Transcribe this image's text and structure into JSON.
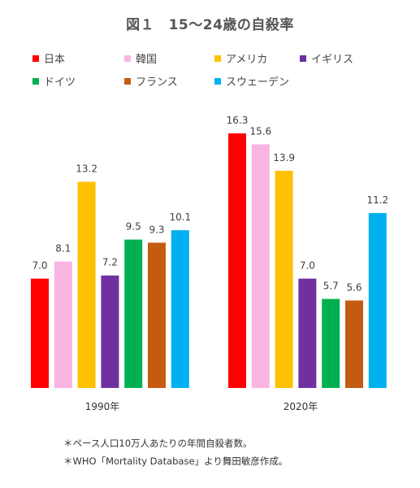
{
  "chart_data": {
    "type": "bar",
    "title": "図１　15～24歳の自殺率",
    "categories": [
      "1990年",
      "2020年"
    ],
    "series": [
      {
        "name": "日本",
        "color": "#ff0000",
        "values": [
          7.0,
          16.3
        ]
      },
      {
        "name": "韓国",
        "color": "#f9b5e2",
        "values": [
          8.1,
          15.6
        ]
      },
      {
        "name": "アメリカ",
        "color": "#ffc000",
        "values": [
          13.2,
          13.9
        ]
      },
      {
        "name": "イギリス",
        "color": "#7030a0",
        "values": [
          7.2,
          7.0
        ]
      },
      {
        "name": "ドイツ",
        "color": "#00b050",
        "values": [
          9.5,
          5.7
        ]
      },
      {
        "name": "フランス",
        "color": "#c55a11",
        "values": [
          9.3,
          5.6
        ]
      },
      {
        "name": "スウェーデン",
        "color": "#00b0f0",
        "values": [
          10.1,
          11.2
        ]
      }
    ],
    "ylim": [
      0,
      16.3
    ],
    "grid": false,
    "legend_position": "top",
    "xlabel": "",
    "ylabel": ""
  },
  "notes": [
    "＊ペース人口10万人あたりの年間自殺者数。",
    "＊WHO「Mortality Database」より舞田敏彦作成。"
  ]
}
